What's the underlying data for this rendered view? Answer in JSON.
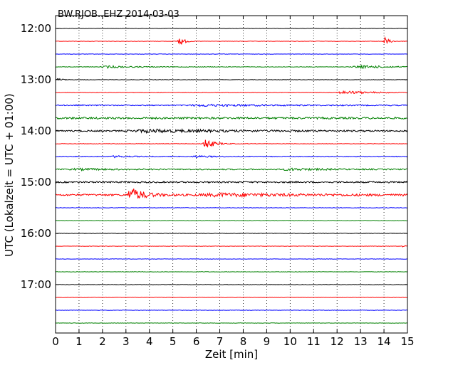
{
  "chart_data": {
    "type": "line",
    "title": "BW.RJOB..EHZ 2014-03-03",
    "xlabel": "Zeit  [min]",
    "ylabel": "UTC (Lokalzeit = UTC + 01:00)",
    "xlim": [
      0,
      15
    ],
    "x_ticks": [
      "0",
      "1",
      "2",
      "3",
      "4",
      "5",
      "6",
      "7",
      "8",
      "9",
      "10",
      "11",
      "12",
      "13",
      "14",
      "15"
    ],
    "y_tick_labels": [
      "12:00",
      "13:00",
      "14:00",
      "15:00",
      "16:00",
      "17:00"
    ],
    "grid": {
      "x": true,
      "y": false
    },
    "trace_colors": [
      "#000000",
      "#ff0000",
      "#0000ff",
      "#008000"
    ],
    "traces": [
      {
        "start": "12:00",
        "level": 0.25,
        "events": []
      },
      {
        "start": "12:15",
        "level": 0.25,
        "events": [
          {
            "t": 5.25,
            "amp": 9,
            "dur": 0.4
          },
          {
            "t": 14.0,
            "amp": 7,
            "dur": 0.4
          }
        ]
      },
      {
        "start": "12:30",
        "level": 0.25,
        "events": []
      },
      {
        "start": "12:45",
        "level": 0.35,
        "events": [
          {
            "t": 2.2,
            "amp": 1.6,
            "dur": 2.5
          },
          {
            "t": 13.0,
            "amp": 2.0,
            "dur": 3
          }
        ]
      },
      {
        "start": "13:00",
        "level": 0.3,
        "events": [
          {
            "t": 0.1,
            "amp": 2.0,
            "dur": 0.4
          }
        ]
      },
      {
        "start": "13:15",
        "level": 0.3,
        "events": [
          {
            "t": 12.3,
            "amp": 2.2,
            "dur": 2.8
          }
        ]
      },
      {
        "start": "13:30",
        "level": 0.7,
        "events": [
          {
            "t": 6.3,
            "amp": 1.2,
            "dur": 6
          }
        ]
      },
      {
        "start": "13:45",
        "level": 1.3,
        "events": []
      },
      {
        "start": "14:00",
        "level": 1.0,
        "events": [
          {
            "t": 4.0,
            "amp": 1.8,
            "dur": 8
          }
        ]
      },
      {
        "start": "14:15",
        "level": 0.3,
        "events": [
          {
            "t": 6.35,
            "amp": 8,
            "dur": 0.8
          }
        ]
      },
      {
        "start": "14:30",
        "level": 0.5,
        "events": [
          {
            "t": 2.5,
            "amp": 1.2,
            "dur": 1.5
          },
          {
            "t": 6.0,
            "amp": 1.3,
            "dur": 1.5
          }
        ]
      },
      {
        "start": "14:45",
        "level": 0.8,
        "events": [
          {
            "t": 1.0,
            "amp": 1.0,
            "dur": 3
          },
          {
            "t": 10.0,
            "amp": 1.4,
            "dur": 3
          }
        ]
      },
      {
        "start": "15:00",
        "level": 1.0,
        "events": []
      },
      {
        "start": "15:15",
        "level": 1.2,
        "events": [
          {
            "t": 3.2,
            "amp": 10,
            "dur": 1.2
          },
          {
            "t": 7.0,
            "amp": 2.0,
            "dur": 8
          }
        ]
      },
      {
        "start": "15:30",
        "level": 0.3,
        "events": []
      },
      {
        "start": "15:45",
        "level": 0.25,
        "events": []
      },
      {
        "start": "16:00",
        "level": 0.3,
        "events": []
      },
      {
        "start": "16:15",
        "level": 0.25,
        "events": [
          {
            "t": 14.8,
            "amp": 1.5,
            "dur": 0.3
          }
        ]
      },
      {
        "start": "16:30",
        "level": 0.25,
        "events": []
      },
      {
        "start": "16:45",
        "level": 0.25,
        "events": []
      },
      {
        "start": "17:00",
        "level": 0.3,
        "events": []
      },
      {
        "start": "17:15",
        "level": 0.25,
        "events": []
      },
      {
        "start": "17:30",
        "level": 0.25,
        "events": []
      },
      {
        "start": "17:45",
        "level": 0.25,
        "events": []
      }
    ]
  }
}
